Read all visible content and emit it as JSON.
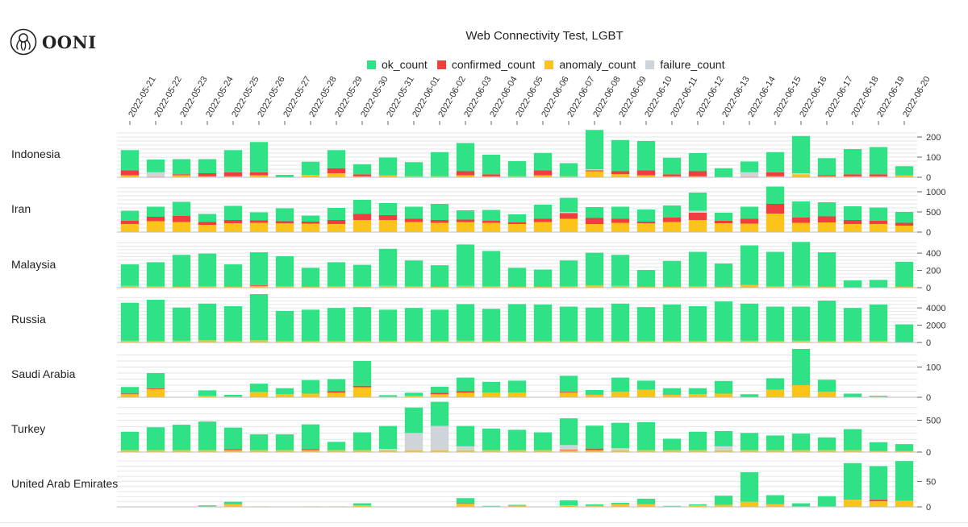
{
  "logo": {
    "text": "OONI"
  },
  "colors": {
    "ok": "#2fe285",
    "confirmed": "#f03e3e",
    "anomaly": "#fcc419",
    "failure": "#ced4da",
    "grid": "#e6e6e6",
    "axis": "#666666"
  },
  "chart_data": {
    "type": "bar",
    "stacked": true,
    "title": "Web Connectivity Test, LGBT",
    "legend": [
      {
        "name": "ok_count",
        "color": "#2fe285"
      },
      {
        "name": "confirmed_count",
        "color": "#f03e3e"
      },
      {
        "name": "anomaly_count",
        "color": "#fcc419"
      },
      {
        "name": "failure_count",
        "color": "#ced4da"
      }
    ],
    "legend_position": "top",
    "grid": true,
    "dates": [
      "2022-05-21",
      "2022-05-22",
      "2022-05-23",
      "2022-05-24",
      "2022-05-25",
      "2022-05-26",
      "2022-05-27",
      "2022-05-28",
      "2022-05-29",
      "2022-05-30",
      "2022-05-31",
      "2022-06-01",
      "2022-06-02",
      "2022-06-03",
      "2022-06-04",
      "2022-06-05",
      "2022-06-06",
      "2022-06-07",
      "2022-06-08",
      "2022-06-09",
      "2022-06-10",
      "2022-06-11",
      "2022-06-12",
      "2022-06-13",
      "2022-06-14",
      "2022-06-15",
      "2022-06-16",
      "2022-06-17",
      "2022-06-18",
      "2022-06-19",
      "2022-06-20"
    ],
    "rows": [
      {
        "country": "Indonesia",
        "ylim": [
          0,
          240
        ],
        "yticks": [
          0,
          100,
          200
        ],
        "ok": [
          100,
          63,
          75,
          70,
          110,
          150,
          12,
          65,
          90,
          50,
          88,
          70,
          120,
          140,
          97,
          75,
          86,
          65,
          195,
          155,
          145,
          82,
          90,
          45,
          53,
          100,
          185,
          85,
          125,
          135,
          45
        ],
        "confirmed": [
          25,
          0,
          5,
          15,
          20,
          15,
          0,
          0,
          25,
          10,
          0,
          0,
          0,
          20,
          10,
          0,
          25,
          0,
          5,
          15,
          25,
          10,
          25,
          0,
          0,
          20,
          0,
          5,
          10,
          10,
          0
        ],
        "anomaly": [
          10,
          5,
          10,
          5,
          5,
          10,
          0,
          12,
          20,
          5,
          10,
          5,
          5,
          10,
          5,
          5,
          10,
          5,
          30,
          15,
          10,
          5,
          5,
          0,
          5,
          5,
          15,
          5,
          5,
          5,
          10
        ],
        "failure": [
          0,
          20,
          0,
          0,
          0,
          0,
          0,
          0,
          0,
          0,
          0,
          0,
          0,
          0,
          0,
          0,
          0,
          0,
          5,
          0,
          0,
          0,
          0,
          0,
          20,
          0,
          5,
          0,
          0,
          0,
          0
        ]
      },
      {
        "country": "Iran",
        "ylim": [
          0,
          1200
        ],
        "yticks": [
          0,
          500,
          1000
        ],
        "ok": [
          250,
          250,
          350,
          200,
          350,
          200,
          320,
          150,
          300,
          350,
          300,
          300,
          400,
          230,
          270,
          200,
          350,
          350,
          270,
          300,
          300,
          300,
          450,
          200,
          300,
          430,
          400,
          350,
          340,
          330,
          270
        ],
        "confirmed": [
          80,
          110,
          150,
          70,
          80,
          60,
          50,
          50,
          100,
          150,
          120,
          80,
          70,
          60,
          50,
          40,
          80,
          140,
          150,
          100,
          40,
          110,
          180,
          60,
          120,
          240,
          130,
          150,
          100,
          80,
          70
        ],
        "anomaly": [
          200,
          270,
          250,
          180,
          220,
          230,
          220,
          210,
          200,
          300,
          300,
          250,
          230,
          250,
          230,
          200,
          250,
          330,
          200,
          230,
          220,
          250,
          300,
          220,
          210,
          460,
          230,
          240,
          200,
          200,
          160
        ],
        "failure": [
          0,
          0,
          0,
          0,
          0,
          0,
          0,
          0,
          0,
          0,
          0,
          0,
          0,
          0,
          0,
          0,
          0,
          30,
          0,
          0,
          0,
          0,
          50,
          0,
          0,
          0,
          0,
          0,
          0,
          0,
          0
        ]
      },
      {
        "country": "Malaysia",
        "ylim": [
          0,
          560
        ],
        "yticks": [
          0,
          200,
          400
        ],
        "ok": [
          250,
          280,
          370,
          380,
          260,
          380,
          350,
          220,
          280,
          250,
          430,
          300,
          250,
          480,
          410,
          220,
          200,
          300,
          380,
          360,
          195,
          300,
          400,
          260,
          460,
          400,
          510,
          400,
          80,
          85,
          290
        ],
        "confirmed": [
          0,
          0,
          0,
          0,
          0,
          10,
          0,
          0,
          0,
          0,
          0,
          0,
          0,
          0,
          0,
          0,
          0,
          0,
          0,
          0,
          0,
          0,
          0,
          5,
          0,
          0,
          0,
          0,
          0,
          0,
          0
        ],
        "anomaly": [
          20,
          15,
          10,
          15,
          10,
          20,
          15,
          10,
          15,
          15,
          20,
          15,
          10,
          20,
          15,
          10,
          10,
          15,
          25,
          20,
          10,
          10,
          15,
          15,
          30,
          15,
          20,
          10,
          5,
          5,
          10
        ],
        "failure": [
          0,
          0,
          0,
          0,
          0,
          0,
          0,
          0,
          0,
          0,
          0,
          0,
          0,
          0,
          0,
          0,
          0,
          0,
          0,
          0,
          0,
          0,
          0,
          0,
          0,
          0,
          0,
          0,
          0,
          0,
          0
        ]
      },
      {
        "country": "Russia",
        "ylim": [
          0,
          5600
        ],
        "yticks": [
          0,
          2000,
          4000
        ],
        "ok": [
          4400,
          4800,
          3850,
          4250,
          4050,
          5350,
          3500,
          3650,
          3850,
          3950,
          3650,
          3850,
          3650,
          4250,
          3750,
          4300,
          4250,
          4000,
          3900,
          4350,
          3950,
          4250,
          4050,
          4600,
          4300,
          4000,
          3950,
          4700,
          3850,
          4250,
          2050
        ],
        "confirmed": [
          0,
          0,
          0,
          0,
          0,
          0,
          0,
          0,
          0,
          0,
          0,
          0,
          0,
          0,
          0,
          0,
          0,
          0,
          0,
          0,
          0,
          0,
          0,
          0,
          0,
          0,
          0,
          0,
          0,
          0,
          0
        ],
        "anomaly": [
          200,
          150,
          200,
          250,
          150,
          250,
          150,
          150,
          150,
          150,
          150,
          150,
          150,
          200,
          150,
          150,
          150,
          150,
          150,
          150,
          150,
          150,
          150,
          150,
          200,
          150,
          200,
          150,
          150,
          150,
          50
        ],
        "failure": [
          0,
          0,
          0,
          0,
          0,
          0,
          0,
          0,
          0,
          0,
          0,
          0,
          0,
          0,
          0,
          0,
          0,
          0,
          0,
          0,
          0,
          0,
          0,
          0,
          0,
          0,
          0,
          0,
          0,
          0,
          0
        ]
      },
      {
        "country": "Saudi Arabia",
        "ylim": [
          0,
          160
        ],
        "yticks": [
          0,
          100
        ],
        "ok": [
          22,
          50,
          0,
          18,
          6,
          28,
          20,
          45,
          40,
          82,
          5,
          10,
          20,
          45,
          36,
          40,
          0,
          53,
          16,
          47,
          30,
          22,
          20,
          42,
          10,
          38,
          120,
          40,
          12,
          3,
          0
        ],
        "confirmed": [
          2,
          3,
          0,
          0,
          0,
          0,
          0,
          0,
          5,
          5,
          0,
          0,
          5,
          5,
          0,
          0,
          0,
          3,
          0,
          0,
          0,
          0,
          0,
          0,
          0,
          0,
          0,
          0,
          0,
          0,
          0
        ],
        "anomaly": [
          10,
          27,
          0,
          5,
          2,
          17,
          10,
          12,
          15,
          33,
          2,
          5,
          10,
          15,
          15,
          15,
          0,
          15,
          8,
          18,
          25,
          8,
          10,
          12,
          0,
          25,
          40,
          18,
          0,
          2,
          0
        ],
        "failure": [
          0,
          0,
          0,
          0,
          0,
          0,
          0,
          0,
          0,
          0,
          0,
          0,
          0,
          0,
          0,
          0,
          0,
          0,
          0,
          0,
          0,
          0,
          0,
          0,
          0,
          0,
          0,
          0,
          0,
          0,
          0
        ]
      },
      {
        "country": "Turkey",
        "ylim": [
          0,
          760
        ],
        "yticks": [
          0,
          500
        ],
        "ok": [
          290,
          360,
          400,
          450,
          340,
          250,
          250,
          390,
          130,
          280,
          360,
          400,
          380,
          320,
          340,
          320,
          280,
          420,
          360,
          400,
          440,
          180,
          290,
          240,
          270,
          230,
          260,
          200,
          330,
          140,
          110
        ],
        "confirmed": [
          0,
          0,
          0,
          0,
          15,
          0,
          0,
          15,
          0,
          0,
          0,
          0,
          0,
          0,
          0,
          0,
          0,
          10,
          25,
          0,
          0,
          0,
          0,
          0,
          0,
          0,
          0,
          0,
          0,
          0,
          0
        ],
        "anomaly": [
          30,
          30,
          30,
          30,
          30,
          30,
          30,
          30,
          30,
          30,
          30,
          30,
          30,
          30,
          30,
          30,
          30,
          30,
          30,
          30,
          30,
          30,
          30,
          30,
          30,
          30,
          30,
          30,
          30,
          15,
          15
        ],
        "failure": [
          0,
          0,
          0,
          0,
          0,
          0,
          0,
          0,
          0,
          0,
          20,
          270,
          380,
          60,
          0,
          0,
          0,
          70,
          0,
          30,
          0,
          0,
          0,
          60,
          0,
          0,
          0,
          0,
          0,
          0,
          0
        ]
      },
      {
        "country": "United Arab Emirates",
        "ylim": [
          0,
          95
        ],
        "yticks": [
          0,
          50
        ],
        "ok": [
          0,
          0,
          0,
          2,
          5,
          0,
          0,
          0,
          0,
          4,
          0,
          0,
          0,
          10,
          1,
          2,
          0,
          10,
          3,
          3,
          11,
          1,
          2,
          18,
          58,
          18,
          6,
          20,
          72,
          66,
          78
        ],
        "confirmed": [
          0,
          0,
          0,
          0,
          0,
          0,
          0,
          0,
          0,
          0,
          0,
          0,
          0,
          1,
          0,
          0,
          0,
          0,
          0,
          0,
          0,
          0,
          0,
          0,
          0,
          0,
          0,
          0,
          0,
          3,
          0
        ],
        "anomaly": [
          0,
          0,
          0,
          1,
          5,
          1,
          0,
          1,
          1,
          3,
          0,
          0,
          0,
          6,
          1,
          2,
          0,
          3,
          2,
          5,
          5,
          1,
          3,
          4,
          10,
          5,
          1,
          1,
          14,
          11,
          12
        ],
        "failure": [
          0,
          0,
          0,
          0,
          0,
          0,
          0,
          0,
          0,
          0,
          0,
          0,
          0,
          0,
          0,
          0,
          0,
          0,
          0,
          0,
          0,
          0,
          0,
          0,
          0,
          0,
          0,
          0,
          0,
          0,
          0
        ]
      }
    ]
  }
}
